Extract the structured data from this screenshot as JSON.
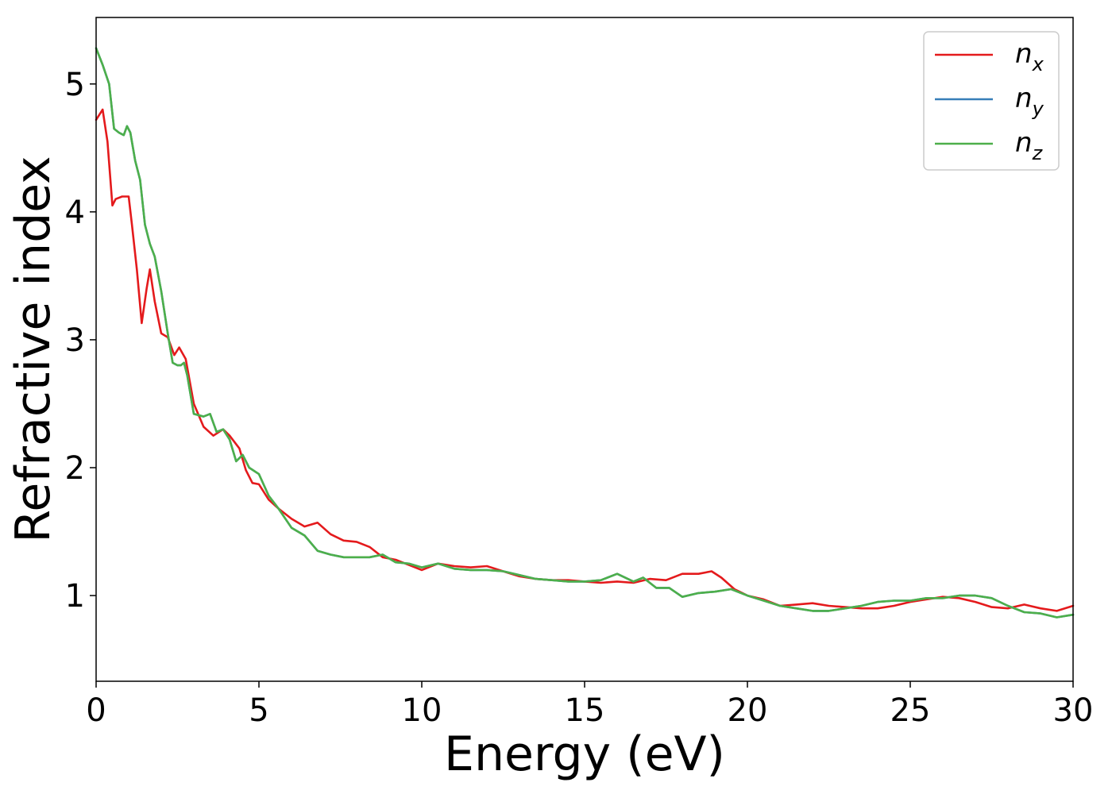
{
  "chart_data": {
    "type": "line",
    "title": "",
    "xlabel": "Energy (eV)",
    "ylabel": "Refractive index",
    "xlim": [
      0,
      30
    ],
    "ylim": [
      0.33,
      5.52
    ],
    "xticks": [
      0,
      5,
      10,
      15,
      20,
      25,
      30
    ],
    "yticks": [
      1,
      2,
      3,
      4,
      5
    ],
    "grid": false,
    "legend_position": "top-right",
    "series": [
      {
        "name": "n_x",
        "label_base": "n",
        "label_sub": "x",
        "color": "#e41a1c",
        "x": [
          0,
          0.2,
          0.35,
          0.5,
          0.6,
          0.8,
          1.0,
          1.1,
          1.25,
          1.4,
          1.55,
          1.65,
          1.8,
          2.0,
          2.2,
          2.4,
          2.55,
          2.75,
          3.0,
          3.3,
          3.6,
          3.9,
          4.1,
          4.4,
          4.6,
          4.8,
          5.0,
          5.3,
          5.6,
          6.0,
          6.4,
          6.8,
          7.2,
          7.6,
          8.0,
          8.4,
          8.8,
          9.2,
          9.6,
          10.0,
          10.5,
          11.0,
          11.5,
          12.0,
          12.5,
          13.0,
          13.5,
          14.0,
          14.5,
          15.0,
          15.5,
          16.0,
          16.5,
          17.0,
          17.5,
          18.0,
          18.5,
          18.9,
          19.2,
          19.6,
          20.0,
          20.5,
          21.0,
          21.5,
          22.0,
          22.5,
          23.0,
          23.5,
          24.0,
          24.5,
          25.0,
          25.5,
          26.0,
          26.5,
          27.0,
          27.5,
          28.0,
          28.5,
          29.0,
          29.5,
          30.0
        ],
        "y": [
          4.72,
          4.8,
          4.55,
          4.05,
          4.1,
          4.12,
          4.12,
          3.9,
          3.55,
          3.13,
          3.4,
          3.55,
          3.3,
          3.05,
          3.02,
          2.88,
          2.94,
          2.85,
          2.5,
          2.32,
          2.25,
          2.3,
          2.25,
          2.15,
          1.98,
          1.88,
          1.87,
          1.75,
          1.68,
          1.6,
          1.54,
          1.57,
          1.48,
          1.43,
          1.42,
          1.38,
          1.3,
          1.28,
          1.24,
          1.2,
          1.25,
          1.23,
          1.22,
          1.23,
          1.19,
          1.15,
          1.13,
          1.12,
          1.12,
          1.11,
          1.1,
          1.11,
          1.1,
          1.13,
          1.12,
          1.17,
          1.17,
          1.19,
          1.14,
          1.05,
          1.0,
          0.97,
          0.92,
          0.93,
          0.94,
          0.92,
          0.91,
          0.9,
          0.9,
          0.92,
          0.95,
          0.97,
          0.99,
          0.98,
          0.95,
          0.91,
          0.9,
          0.93,
          0.9,
          0.88,
          0.92
        ]
      },
      {
        "name": "n_y",
        "label_base": "n",
        "label_sub": "y",
        "color": "#377eb8",
        "x": [
          0,
          0.2,
          0.4,
          0.55,
          0.7,
          0.85,
          0.95,
          1.05,
          1.2,
          1.35,
          1.5,
          1.65,
          1.8,
          2.0,
          2.2,
          2.35,
          2.5,
          2.6,
          2.7,
          2.8,
          3.0,
          3.3,
          3.5,
          3.7,
          3.9,
          4.1,
          4.3,
          4.5,
          4.7,
          5.0,
          5.3,
          5.6,
          6.0,
          6.4,
          6.8,
          7.2,
          7.6,
          8.0,
          8.4,
          8.8,
          9.2,
          9.6,
          10.0,
          10.5,
          11.0,
          11.5,
          12.0,
          12.5,
          13.0,
          13.5,
          14.0,
          14.5,
          15.0,
          15.5,
          16.0,
          16.5,
          16.8,
          17.2,
          17.6,
          18.0,
          18.5,
          19.0,
          19.5,
          20.0,
          20.5,
          21.0,
          21.5,
          22.0,
          22.5,
          23.0,
          23.5,
          24.0,
          24.5,
          25.0,
          25.5,
          26.0,
          26.5,
          27.0,
          27.5,
          28.0,
          28.5,
          29.0,
          29.5,
          30.0
        ],
        "y": [
          5.28,
          5.15,
          5.0,
          4.65,
          4.62,
          4.6,
          4.67,
          4.62,
          4.4,
          4.25,
          3.9,
          3.75,
          3.65,
          3.38,
          3.05,
          2.82,
          2.8,
          2.8,
          2.82,
          2.72,
          2.42,
          2.4,
          2.42,
          2.28,
          2.3,
          2.22,
          2.05,
          2.1,
          2.0,
          1.95,
          1.78,
          1.68,
          1.53,
          1.47,
          1.35,
          1.32,
          1.3,
          1.3,
          1.3,
          1.32,
          1.26,
          1.25,
          1.22,
          1.25,
          1.21,
          1.2,
          1.2,
          1.19,
          1.16,
          1.13,
          1.12,
          1.11,
          1.11,
          1.12,
          1.17,
          1.11,
          1.14,
          1.06,
          1.06,
          0.99,
          1.02,
          1.03,
          1.05,
          1.0,
          0.96,
          0.92,
          0.9,
          0.88,
          0.88,
          0.9,
          0.92,
          0.95,
          0.96,
          0.96,
          0.98,
          0.98,
          1.0,
          1.0,
          0.98,
          0.92,
          0.87,
          0.86,
          0.83,
          0.85
        ]
      },
      {
        "name": "n_z",
        "label_base": "n",
        "label_sub": "z",
        "color": "#4daf4a",
        "x": [
          0,
          0.2,
          0.4,
          0.55,
          0.7,
          0.85,
          0.95,
          1.05,
          1.2,
          1.35,
          1.5,
          1.65,
          1.8,
          2.0,
          2.2,
          2.35,
          2.5,
          2.6,
          2.7,
          2.8,
          3.0,
          3.3,
          3.5,
          3.7,
          3.9,
          4.1,
          4.3,
          4.5,
          4.7,
          5.0,
          5.3,
          5.6,
          6.0,
          6.4,
          6.8,
          7.2,
          7.6,
          8.0,
          8.4,
          8.8,
          9.2,
          9.6,
          10.0,
          10.5,
          11.0,
          11.5,
          12.0,
          12.5,
          13.0,
          13.5,
          14.0,
          14.5,
          15.0,
          15.5,
          16.0,
          16.5,
          16.8,
          17.2,
          17.6,
          18.0,
          18.5,
          19.0,
          19.5,
          20.0,
          20.5,
          21.0,
          21.5,
          22.0,
          22.5,
          23.0,
          23.5,
          24.0,
          24.5,
          25.0,
          25.5,
          26.0,
          26.5,
          27.0,
          27.5,
          28.0,
          28.5,
          29.0,
          29.5,
          30.0
        ],
        "y": [
          5.28,
          5.15,
          5.0,
          4.65,
          4.62,
          4.6,
          4.67,
          4.62,
          4.4,
          4.25,
          3.9,
          3.75,
          3.65,
          3.38,
          3.05,
          2.82,
          2.8,
          2.8,
          2.82,
          2.72,
          2.42,
          2.4,
          2.42,
          2.28,
          2.3,
          2.22,
          2.05,
          2.1,
          2.0,
          1.95,
          1.78,
          1.68,
          1.53,
          1.47,
          1.35,
          1.32,
          1.3,
          1.3,
          1.3,
          1.32,
          1.26,
          1.25,
          1.22,
          1.25,
          1.21,
          1.2,
          1.2,
          1.19,
          1.16,
          1.13,
          1.12,
          1.11,
          1.11,
          1.12,
          1.17,
          1.11,
          1.14,
          1.06,
          1.06,
          0.99,
          1.02,
          1.03,
          1.05,
          1.0,
          0.96,
          0.92,
          0.9,
          0.88,
          0.88,
          0.9,
          0.92,
          0.95,
          0.96,
          0.96,
          0.98,
          0.98,
          1.0,
          1.0,
          0.98,
          0.92,
          0.87,
          0.86,
          0.83,
          0.85
        ]
      }
    ]
  }
}
